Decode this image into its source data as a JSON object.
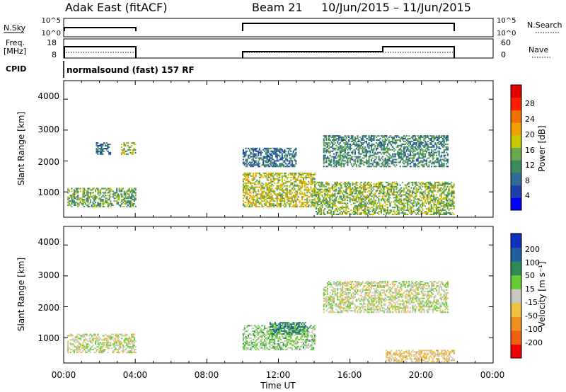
{
  "header": {
    "station": "Adak East (fitACF)",
    "beam": "Beam 21",
    "dates": "10/Jun/2015 – 11/Jun/2015"
  },
  "top_panels": {
    "nsky_label": "N.Sky",
    "nsky_ticks": [
      "10^5",
      "10^0"
    ],
    "nsearch_label": "N.Search",
    "nsearch_ticks": [
      "10^5",
      "10^0"
    ],
    "freq_label_line1": "Freq.",
    "freq_label_line2": "[MHz]",
    "freq_ticks": [
      "18",
      "8"
    ],
    "nave_label": "Nave",
    "nave_ticks": [
      "60",
      "0"
    ],
    "cpid_label": "CPID",
    "cpid_text": "normalsound (fast) 157 RF"
  },
  "x_axis": {
    "label": "Time UT",
    "ticks": [
      "00:00",
      "04:00",
      "08:00",
      "12:00",
      "16:00",
      "20:00",
      "00:00"
    ]
  },
  "power_panel": {
    "ylabel": "Slant Range [km]",
    "yticks": [
      "4000",
      "3000",
      "2000",
      "1000"
    ],
    "colorbar_label": "Power [dB]",
    "colorbar_ticks": [
      "28",
      "24",
      "20",
      "16",
      "12",
      "8",
      "4"
    ],
    "colors": [
      "#0000ff",
      "#1f3fa8",
      "#2f6b96",
      "#3c8a5a",
      "#6aa84f",
      "#c8c800",
      "#f0a000",
      "#f07000",
      "#ff2000",
      "#e00000"
    ]
  },
  "velocity_panel": {
    "ylabel": "Slant Range [km]",
    "yticks": [
      "4000",
      "3000",
      "2000",
      "1000"
    ],
    "colorbar_label": "Velocity [m s⁻¹]",
    "colorbar_ticks": [
      "200",
      "100",
      "50",
      "15",
      "-15",
      "-50",
      "-100",
      "-200"
    ],
    "colors": [
      "#1030c0",
      "#2060a0",
      "#2e8b57",
      "#66cc33",
      "#c8c8c0",
      "#f0c040",
      "#f09020",
      "#f06010",
      "#f00000"
    ]
  },
  "chart_data": [
    {
      "type": "heatmap",
      "title": "Power",
      "x_range_hours": [
        0,
        24
      ],
      "y_range_km": [
        180,
        4600
      ],
      "clim": [
        0,
        30
      ],
      "coverage_hours": [
        [
          0,
          4
        ],
        [
          10,
          22
        ]
      ],
      "echo_regions": [
        {
          "t0": 0.2,
          "t1": 4.0,
          "r0": 500,
          "r1": 1100,
          "value": 12
        },
        {
          "t0": 1.8,
          "t1": 2.6,
          "r0": 2200,
          "r1": 2600,
          "value": 8
        },
        {
          "t0": 3.2,
          "t1": 4.0,
          "r0": 2200,
          "r1": 2600,
          "value": 14
        },
        {
          "t0": 10.0,
          "t1": 14.0,
          "r0": 500,
          "r1": 1600,
          "value": 16
        },
        {
          "t0": 10.0,
          "t1": 13.0,
          "r0": 1800,
          "r1": 2400,
          "value": 8
        },
        {
          "t0": 14.5,
          "t1": 21.5,
          "r0": 1800,
          "r1": 2800,
          "value": 10
        },
        {
          "t0": 14.0,
          "t1": 21.8,
          "r0": 250,
          "r1": 1300,
          "value": 14
        }
      ]
    },
    {
      "type": "heatmap",
      "title": "Velocity",
      "x_range_hours": [
        0,
        24
      ],
      "y_range_km": [
        180,
        4600
      ],
      "clim": [
        -250,
        250
      ],
      "coverage_hours": [
        [
          0,
          4
        ],
        [
          10,
          22
        ]
      ],
      "echo_regions": [
        {
          "t0": 0.2,
          "t1": 4.0,
          "r0": 500,
          "r1": 1100,
          "value": 0
        },
        {
          "t0": 10.0,
          "t1": 14.0,
          "r0": 600,
          "r1": 1400,
          "value": 40
        },
        {
          "t0": 11.5,
          "t1": 13.5,
          "r0": 1100,
          "r1": 1500,
          "value": 120
        },
        {
          "t0": 14.5,
          "t1": 21.5,
          "r0": 1800,
          "r1": 2800,
          "value": 0
        },
        {
          "t0": 18.0,
          "t1": 21.8,
          "r0": 200,
          "r1": 600,
          "value": -40
        }
      ]
    }
  ]
}
